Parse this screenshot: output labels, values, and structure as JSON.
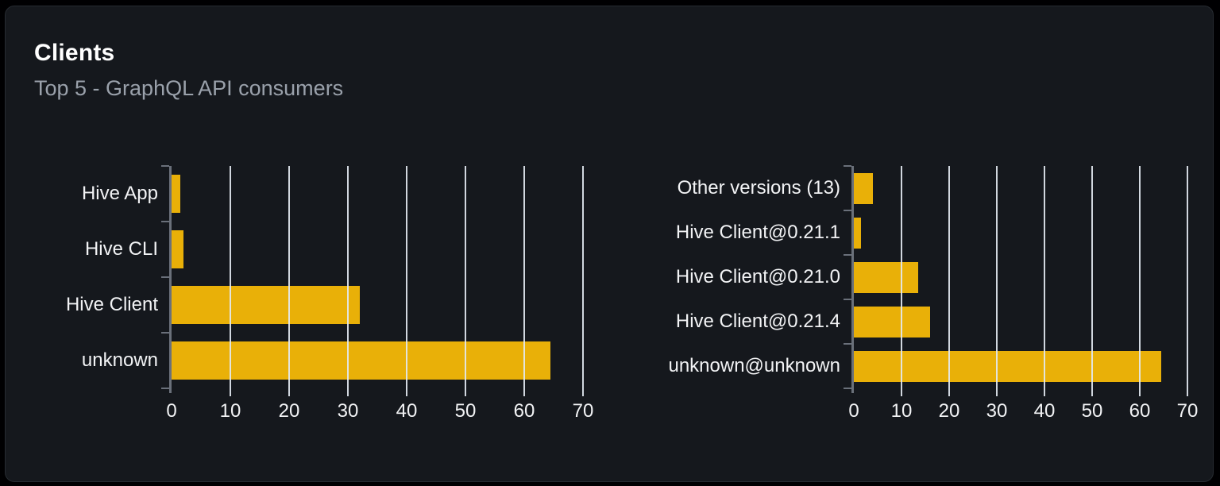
{
  "header": {
    "title": "Clients",
    "subtitle": "Top 5 - GraphQL API consumers"
  },
  "colors": {
    "bar": "#e9b008",
    "card_background": "#15181d",
    "page_background": "#000002",
    "card_border": "#262b31",
    "gridline": "#e2e8f0",
    "axis": "#6a707a",
    "title_text": "#ffffff",
    "subtitle_text": "#9aa1ab",
    "label_text": "#f2f3f5"
  },
  "chart_data": [
    {
      "type": "bar",
      "orientation": "horizontal",
      "title": "",
      "categories": [
        "Hive App",
        "Hive CLI",
        "Hive Client",
        "unknown"
      ],
      "values": [
        1.5,
        2,
        32,
        64.5
      ],
      "xlim": [
        0,
        70
      ],
      "xticks": [
        0,
        10,
        20,
        30,
        40,
        50,
        60,
        70
      ],
      "grid": true,
      "legend": "none",
      "bar_fill_ratio": 0.69
    },
    {
      "type": "bar",
      "orientation": "horizontal",
      "title": "",
      "categories": [
        "Other versions (13)",
        "Hive Client@0.21.1",
        "Hive Client@0.21.0",
        "Hive Client@0.21.4",
        "unknown@unknown"
      ],
      "values": [
        4,
        1.5,
        13.5,
        16,
        64.5
      ],
      "xlim": [
        0,
        70
      ],
      "xticks": [
        0,
        10,
        20,
        30,
        40,
        50,
        60,
        70
      ],
      "grid": true,
      "legend": "none",
      "bar_fill_ratio": 0.7
    }
  ]
}
